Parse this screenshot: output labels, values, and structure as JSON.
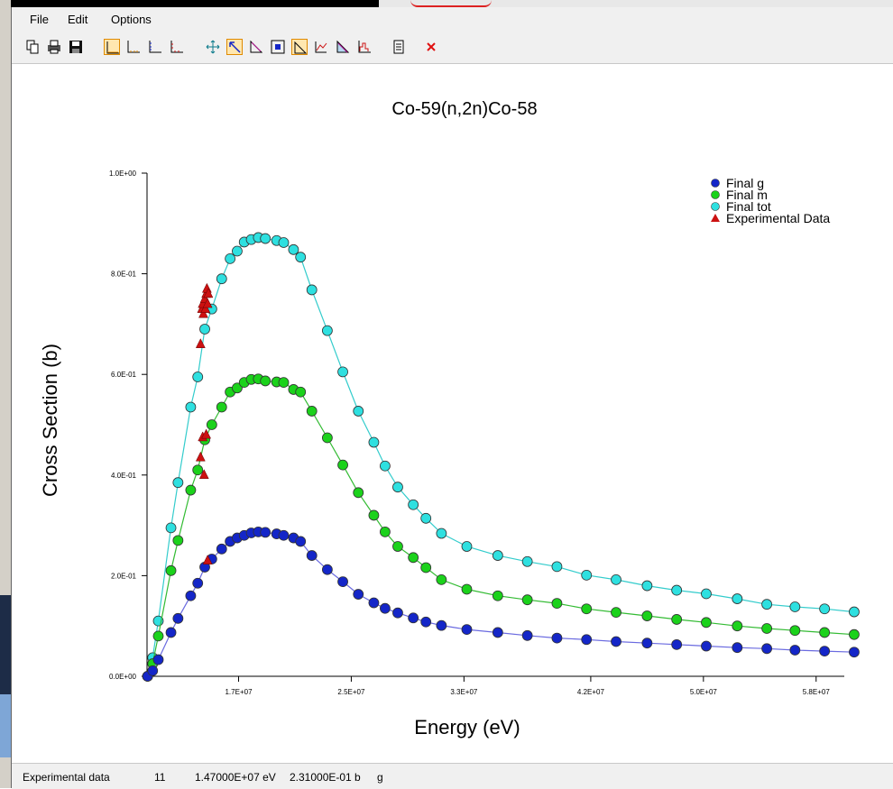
{
  "menu": {
    "file": "File",
    "edit": "Edit",
    "options": "Options"
  },
  "toolbar": {
    "icons": [
      "copy-icon",
      "print-icon",
      "save-icon",
      "linlin-scale-icon",
      "loglin-scale-icon",
      "linlog-scale-icon",
      "loglog-scale-icon",
      "zoom-all-icon",
      "zoom-box-icon",
      "pan-icon",
      "select-icon",
      "line-plot-icon",
      "points-icon",
      "area-icon",
      "histogram-icon",
      "document-icon",
      "close-icon"
    ],
    "accent_selected": "#ffe7b0"
  },
  "status": {
    "label": "Experimental data",
    "count": "11",
    "energy": "1.47000E+07 eV",
    "xs": "2.31000E-01 b",
    "state": "g"
  },
  "chart_data": {
    "type": "scatter",
    "title": "Co-59(n,2n)Co-58",
    "xlabel": "Energy (eV)",
    "ylabel": "Cross Section (b)",
    "xlim": [
      10500000,
      60000000
    ],
    "ylim": [
      0,
      1.0
    ],
    "xticks": [
      17000000,
      25000000,
      33000000,
      42000000,
      50000000,
      58000000
    ],
    "xtick_labels": [
      "1.7E+07",
      "2.5E+07",
      "3.3E+07",
      "4.2E+07",
      "5.0E+07",
      "5.8E+07"
    ],
    "yticks": [
      0,
      0.2,
      0.4,
      0.6,
      0.8,
      1.0
    ],
    "ytick_labels": [
      "0.0E+00",
      "2.0E-01",
      "4.0E-01",
      "6.0E-01",
      "8.0E-01",
      "1.0E+00"
    ],
    "legend_position": "top-right",
    "grid": false,
    "series": [
      {
        "name": "Final g",
        "color": "#1426c8",
        "line": "#6a6ae0",
        "marker": "circle",
        "points": [
          [
            10540000,
            0
          ],
          [
            10900000,
            0.011
          ],
          [
            11300000,
            0.033
          ],
          [
            12200000,
            0.087
          ],
          [
            12700000,
            0.115
          ],
          [
            13600000,
            0.16
          ],
          [
            14100000,
            0.185
          ],
          [
            14600000,
            0.217
          ],
          [
            15100000,
            0.233
          ],
          [
            15800000,
            0.253
          ],
          [
            16400000,
            0.268
          ],
          [
            16900000,
            0.275
          ],
          [
            17400000,
            0.28
          ],
          [
            17900000,
            0.285
          ],
          [
            18400000,
            0.287
          ],
          [
            18900000,
            0.286
          ],
          [
            19700000,
            0.283
          ],
          [
            20200000,
            0.28
          ],
          [
            20900000,
            0.275
          ],
          [
            21400000,
            0.268
          ],
          [
            22200000,
            0.24
          ],
          [
            23300000,
            0.212
          ],
          [
            24400000,
            0.188
          ],
          [
            25500000,
            0.163
          ],
          [
            26600000,
            0.146
          ],
          [
            27400000,
            0.135
          ],
          [
            28300000,
            0.126
          ],
          [
            29400000,
            0.116
          ],
          [
            30300000,
            0.108
          ],
          [
            31400000,
            0.101
          ],
          [
            33200000,
            0.093
          ],
          [
            35400000,
            0.087
          ],
          [
            37500000,
            0.081
          ],
          [
            39600000,
            0.076
          ],
          [
            41700000,
            0.073
          ],
          [
            43800000,
            0.069
          ],
          [
            46000000,
            0.066
          ],
          [
            48100000,
            0.063
          ],
          [
            50200000,
            0.06
          ],
          [
            52400000,
            0.057
          ],
          [
            54500000,
            0.055
          ],
          [
            56500000,
            0.052
          ],
          [
            58600000,
            0.05
          ],
          [
            60700000,
            0.048
          ]
        ]
      },
      {
        "name": "Final m",
        "color": "#1bd21b",
        "line": "#33bb33",
        "marker": "circle",
        "points": [
          [
            10540000,
            0
          ],
          [
            10900000,
            0.025
          ],
          [
            11300000,
            0.08
          ],
          [
            12200000,
            0.21
          ],
          [
            12700000,
            0.27
          ],
          [
            13600000,
            0.37
          ],
          [
            14100000,
            0.41
          ],
          [
            14600000,
            0.47
          ],
          [
            15100000,
            0.5
          ],
          [
            15800000,
            0.535
          ],
          [
            16400000,
            0.565
          ],
          [
            16900000,
            0.573
          ],
          [
            17400000,
            0.584
          ],
          [
            17900000,
            0.59
          ],
          [
            18400000,
            0.591
          ],
          [
            18900000,
            0.587
          ],
          [
            19700000,
            0.585
          ],
          [
            20200000,
            0.584
          ],
          [
            20900000,
            0.57
          ],
          [
            21400000,
            0.565
          ],
          [
            22200000,
            0.527
          ],
          [
            23300000,
            0.474
          ],
          [
            24400000,
            0.42
          ],
          [
            25500000,
            0.365
          ],
          [
            26600000,
            0.32
          ],
          [
            27400000,
            0.287
          ],
          [
            28300000,
            0.258
          ],
          [
            29400000,
            0.236
          ],
          [
            30300000,
            0.216
          ],
          [
            31400000,
            0.192
          ],
          [
            33200000,
            0.173
          ],
          [
            35400000,
            0.16
          ],
          [
            37500000,
            0.152
          ],
          [
            39600000,
            0.145
          ],
          [
            41700000,
            0.134
          ],
          [
            43800000,
            0.127
          ],
          [
            46000000,
            0.12
          ],
          [
            48100000,
            0.113
          ],
          [
            50200000,
            0.107
          ],
          [
            52400000,
            0.1
          ],
          [
            54500000,
            0.095
          ],
          [
            56500000,
            0.091
          ],
          [
            58600000,
            0.087
          ],
          [
            60700000,
            0.083
          ]
        ]
      },
      {
        "name": "Final tot",
        "color": "#2ee0e0",
        "line": "#33cccc",
        "marker": "circle",
        "points": [
          [
            10540000,
            0
          ],
          [
            10900000,
            0.037
          ],
          [
            11300000,
            0.11
          ],
          [
            12200000,
            0.295
          ],
          [
            12700000,
            0.385
          ],
          [
            13600000,
            0.535
          ],
          [
            14100000,
            0.595
          ],
          [
            14600000,
            0.69
          ],
          [
            15100000,
            0.73
          ],
          [
            15800000,
            0.79
          ],
          [
            16400000,
            0.83
          ],
          [
            16900000,
            0.845
          ],
          [
            17400000,
            0.863
          ],
          [
            17900000,
            0.868
          ],
          [
            18400000,
            0.872
          ],
          [
            18900000,
            0.87
          ],
          [
            19700000,
            0.866
          ],
          [
            20200000,
            0.862
          ],
          [
            20900000,
            0.848
          ],
          [
            21400000,
            0.833
          ],
          [
            22200000,
            0.768
          ],
          [
            23300000,
            0.687
          ],
          [
            24400000,
            0.605
          ],
          [
            25500000,
            0.527
          ],
          [
            26600000,
            0.465
          ],
          [
            27400000,
            0.418
          ],
          [
            28300000,
            0.376
          ],
          [
            29400000,
            0.341
          ],
          [
            30300000,
            0.314
          ],
          [
            31400000,
            0.284
          ],
          [
            33200000,
            0.258
          ],
          [
            35400000,
            0.24
          ],
          [
            37500000,
            0.228
          ],
          [
            39600000,
            0.218
          ],
          [
            41700000,
            0.201
          ],
          [
            43800000,
            0.192
          ],
          [
            46000000,
            0.18
          ],
          [
            48100000,
            0.171
          ],
          [
            50200000,
            0.164
          ],
          [
            52400000,
            0.154
          ],
          [
            54500000,
            0.143
          ],
          [
            56500000,
            0.138
          ],
          [
            58600000,
            0.134
          ],
          [
            60700000,
            0.128
          ]
        ]
      },
      {
        "name": "Experimental Data",
        "color": "#cc1111",
        "line": null,
        "marker": "triangle",
        "points": [
          [
            14300000,
            0.66
          ],
          [
            14400000,
            0.73
          ],
          [
            14450000,
            0.74
          ],
          [
            14500000,
            0.72
          ],
          [
            14600000,
            0.75
          ],
          [
            14650000,
            0.73
          ],
          [
            14700000,
            0.76
          ],
          [
            14750000,
            0.77
          ],
          [
            14800000,
            0.74
          ],
          [
            14850000,
            0.76
          ],
          [
            14300000,
            0.435
          ],
          [
            14450000,
            0.475
          ],
          [
            14550000,
            0.4
          ],
          [
            14700000,
            0.48
          ],
          [
            14800000,
            0.23
          ]
        ]
      }
    ]
  }
}
